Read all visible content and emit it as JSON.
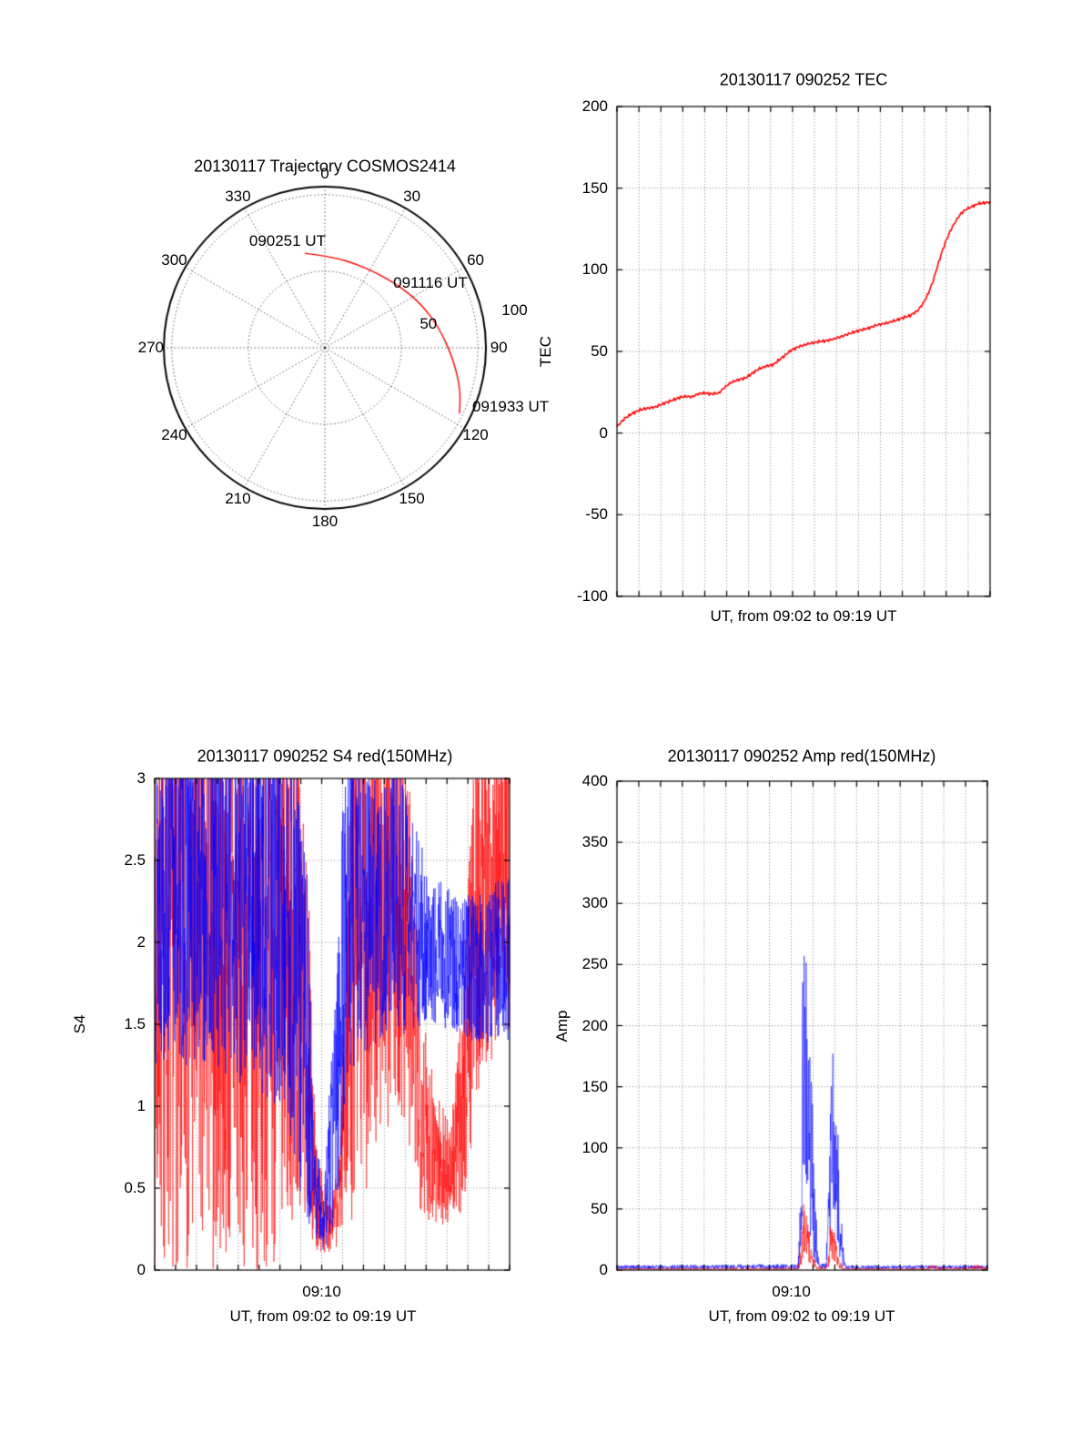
{
  "figure": {
    "background": "#ffffff",
    "colors": {
      "red": "#ff0000",
      "blue": "#0000ff",
      "axis": "#000000"
    }
  },
  "chart_data": [
    {
      "type": "polar-trajectory",
      "title": "20130117 Trajectory COSMOS2414",
      "azimuth_labels": [
        "0",
        "30",
        "60",
        "90",
        "120",
        "150",
        "180",
        "210",
        "240",
        "270",
        "300",
        "330"
      ],
      "ring_labels": [
        {
          "label": "50",
          "az": 77,
          "rf": 0.66
        },
        {
          "label": "100",
          "az": 79,
          "rf": 1.2
        }
      ],
      "rings_rf": [
        0.475,
        0.95
      ],
      "trajectory": {
        "name": "COSMOS2414",
        "color": "#ff0000",
        "points_az_rf": [
          [
            348,
            0.6
          ],
          [
            5,
            0.565
          ],
          [
            20,
            0.555
          ],
          [
            35,
            0.565
          ],
          [
            50,
            0.6
          ],
          [
            65,
            0.655
          ],
          [
            80,
            0.72
          ],
          [
            95,
            0.8
          ],
          [
            107,
            0.88
          ],
          [
            116,
            0.93
          ]
        ]
      },
      "annotations": [
        {
          "text": "090251 UT",
          "fx": -0.232,
          "fy": -0.661
        },
        {
          "text": "091116 UT",
          "fx": 0.655,
          "fy": -0.401
        },
        {
          "text": "091933 UT",
          "fx": 1.153,
          "fy": 0.367
        }
      ]
    },
    {
      "type": "line",
      "title": "20130117 090252 TEC",
      "ylabel": "TEC",
      "xlabel": "UT, from 09:02 to 09:19 UT",
      "ylim": [
        -100,
        200
      ],
      "yticks": [
        -100,
        -50,
        0,
        50,
        100,
        150,
        200
      ],
      "x_range_minutes": [
        0,
        17
      ],
      "x_start": "09:02",
      "x_end": "09:19",
      "xticks": [],
      "series": [
        {
          "name": "TEC",
          "color": "#ff0000",
          "points": [
            [
              0,
              4
            ],
            [
              0.35,
              9
            ],
            [
              0.7,
              12
            ],
            [
              1,
              14
            ],
            [
              1.3,
              15
            ],
            [
              1.74,
              16
            ],
            [
              2.1,
              18
            ],
            [
              2.5,
              20
            ],
            [
              2.9,
              22
            ],
            [
              3.2,
              22.5
            ],
            [
              3.4,
              22
            ],
            [
              3.7,
              24
            ],
            [
              4,
              24.5
            ],
            [
              4.3,
              24
            ],
            [
              4.64,
              24.5
            ],
            [
              4.9,
              28
            ],
            [
              5.2,
              31
            ],
            [
              5.5,
              32.5
            ],
            [
              5.89,
              34
            ],
            [
              6.2,
              37
            ],
            [
              6.5,
              39.5
            ],
            [
              6.8,
              41
            ],
            [
              7.13,
              42
            ],
            [
              7.5,
              46
            ],
            [
              7.97,
              51
            ],
            [
              8.3,
              53
            ],
            [
              8.8,
              55
            ],
            [
              9.2,
              56
            ],
            [
              9.5,
              56.5
            ],
            [
              9.83,
              57.5
            ],
            [
              10.2,
              59
            ],
            [
              10.6,
              61
            ],
            [
              11.08,
              63
            ],
            [
              11.4,
              64
            ],
            [
              11.8,
              66
            ],
            [
              12.32,
              67.5
            ],
            [
              12.7,
              69
            ],
            [
              13,
              70.5
            ],
            [
              13.36,
              72
            ],
            [
              13.7,
              75
            ],
            [
              13.98,
              80
            ],
            [
              14.2,
              86
            ],
            [
              14.4,
              93
            ],
            [
              14.6,
              102
            ],
            [
              14.81,
              111
            ],
            [
              15,
              118
            ],
            [
              15.23,
              125
            ],
            [
              15.45,
              130
            ],
            [
              15.64,
              134
            ],
            [
              15.85,
              136.5
            ],
            [
              16.06,
              138
            ],
            [
              16.3,
              139.5
            ],
            [
              16.47,
              140.5
            ],
            [
              16.75,
              141
            ],
            [
              17,
              141.5
            ]
          ]
        }
      ]
    },
    {
      "type": "noisy",
      "title": "20130117 090252 S4 red(150MHz)",
      "ylabel": "S4",
      "xlabel": "UT, from 09:02 to 09:19 UT",
      "ylim": [
        0,
        3
      ],
      "yticks": [
        0,
        0.5,
        1,
        1.5,
        2,
        2.5,
        3
      ],
      "xticks": [
        {
          "t": 8,
          "label": "09:10"
        }
      ],
      "series": [
        {
          "name": "red(150MHz)",
          "color": "#ff0000",
          "envelope": [
            [
              0,
              0,
              3.6
            ],
            [
              5.8,
              0,
              3.6
            ],
            [
              6.8,
              0.25,
              3.6
            ],
            [
              7.4,
              0.2,
              2.2
            ],
            [
              7.7,
              0.12,
              0.8
            ],
            [
              8.3,
              0.1,
              0.45
            ],
            [
              8.8,
              0.15,
              0.6
            ],
            [
              9.1,
              0.3,
              2
            ],
            [
              9.5,
              0.3,
              3.6
            ],
            [
              10.2,
              0.5,
              3.6
            ],
            [
              11,
              0.8,
              3.6
            ],
            [
              12,
              0.9,
              3.6
            ],
            [
              12.5,
              0.4,
              2.2
            ],
            [
              13,
              0.3,
              1.5
            ],
            [
              13.6,
              0.25,
              1.1
            ],
            [
              14.2,
              0.3,
              0.9
            ],
            [
              14.7,
              0.3,
              1.6
            ],
            [
              15.1,
              0.7,
              2.8
            ],
            [
              15.5,
              1.1,
              3.6
            ],
            [
              16.2,
              1.3,
              3.6
            ],
            [
              17,
              1.3,
              3.6
            ]
          ]
        },
        {
          "name": "blue",
          "color": "#0000ff",
          "envelope": [
            [
              0,
              1.25,
              3.5
            ],
            [
              3,
              1.2,
              3.5
            ],
            [
              5,
              1.1,
              3.5
            ],
            [
              6.5,
              0.8,
              3.4
            ],
            [
              7.2,
              0.2,
              3
            ],
            [
              7.6,
              0.13,
              0.9
            ],
            [
              8.1,
              0.12,
              0.5
            ],
            [
              8.5,
              0.2,
              1.4
            ],
            [
              8.9,
              0.6,
              2.6
            ],
            [
              9.3,
              1.2,
              3.4
            ],
            [
              10,
              1.3,
              3.2
            ],
            [
              10.8,
              1.4,
              2.9
            ],
            [
              11.5,
              1.5,
              3.3
            ],
            [
              12.2,
              1.4,
              2.8
            ],
            [
              12.8,
              1.5,
              2.6
            ],
            [
              13.5,
              1.5,
              2.4
            ],
            [
              14.3,
              1.45,
              2.3
            ],
            [
              15,
              1.4,
              2.3
            ],
            [
              15.8,
              1.35,
              2.3
            ],
            [
              16.5,
              1.4,
              2.4
            ],
            [
              17,
              1.4,
              2.4
            ]
          ]
        }
      ]
    },
    {
      "type": "noisy",
      "title": "20130117 090252 Amp red(150MHz)",
      "ylabel": "Amp",
      "xlabel": "UT, from 09:02 to 09:19 UT",
      "ylim": [
        0,
        400
      ],
      "yticks": [
        0,
        50,
        100,
        150,
        200,
        250,
        300,
        350,
        400
      ],
      "xticks": [
        {
          "t": 8,
          "label": "09:10"
        }
      ],
      "series": [
        {
          "name": "blue",
          "color": "#0000ff",
          "envelope": [
            [
              0,
              0.8,
              4
            ],
            [
              8.3,
              0.8,
              5
            ],
            [
              8.42,
              3,
              60
            ],
            [
              8.5,
              40,
              235
            ],
            [
              8.6,
              80,
              270
            ],
            [
              8.72,
              50,
              245
            ],
            [
              8.85,
              30,
              205
            ],
            [
              8.95,
              15,
              150
            ],
            [
              9.1,
              4,
              70
            ],
            [
              9.2,
              1.5,
              18
            ],
            [
              9.3,
              0.8,
              5
            ],
            [
              9.6,
              0.8,
              6
            ],
            [
              9.72,
              5,
              90
            ],
            [
              9.82,
              30,
              165
            ],
            [
              9.92,
              50,
              205
            ],
            [
              10.05,
              30,
              175
            ],
            [
              10.18,
              10,
              120
            ],
            [
              10.3,
              3,
              45
            ],
            [
              10.42,
              1,
              8
            ],
            [
              10.55,
              0.8,
              4
            ],
            [
              17,
              0.8,
              4
            ]
          ]
        },
        {
          "name": "red(150MHz)",
          "color": "#ff0000",
          "envelope": [
            [
              0,
              0.2,
              1.5
            ],
            [
              8.3,
              0.2,
              2
            ],
            [
              8.45,
              2,
              22
            ],
            [
              8.55,
              8,
              55
            ],
            [
              8.7,
              6,
              45
            ],
            [
              8.85,
              4,
              30
            ],
            [
              9,
              1,
              12
            ],
            [
              9.15,
              0.3,
              3
            ],
            [
              9.6,
              0.3,
              2
            ],
            [
              9.7,
              2,
              12
            ],
            [
              9.8,
              6,
              38
            ],
            [
              9.95,
              6,
              35
            ],
            [
              10.1,
              3,
              20
            ],
            [
              10.25,
              1,
              8
            ],
            [
              10.4,
              0.2,
              1.5
            ],
            [
              14.3,
              0.2,
              1.5
            ],
            [
              14.5,
              0.5,
              6
            ],
            [
              14.7,
              0.2,
              2
            ],
            [
              16.2,
              0.2,
              2
            ],
            [
              16.5,
              0.5,
              5
            ],
            [
              16.8,
              0.3,
              3
            ],
            [
              17,
              0.3,
              2
            ]
          ]
        }
      ]
    }
  ]
}
